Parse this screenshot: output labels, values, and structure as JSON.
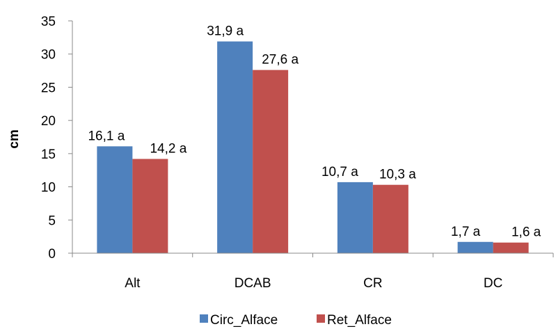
{
  "chart_data": {
    "type": "bar",
    "title": "",
    "xlabel": "",
    "ylabel": "cm",
    "ylim": [
      0,
      35
    ],
    "yticks": [
      "0",
      "5",
      "10",
      "15",
      "20",
      "25",
      "30",
      "35"
    ],
    "categories": [
      "Alt",
      "DCAB",
      "CR",
      "DC"
    ],
    "grid": false,
    "legend_position": "bottom",
    "series": [
      {
        "name": "Circ_Alface",
        "color": "#4F81BD",
        "values": [
          16.1,
          31.9,
          10.7,
          1.7
        ],
        "labels": [
          "16,1 a",
          "31,9 a",
          "10,7 a",
          "1,7 a"
        ]
      },
      {
        "name": "Ret_Alface",
        "color": "#C0504D",
        "values": [
          14.2,
          27.6,
          10.3,
          1.6
        ],
        "labels": [
          "14,2 a",
          "27,6 a",
          "10,3 a",
          "1,6 a"
        ]
      }
    ]
  }
}
